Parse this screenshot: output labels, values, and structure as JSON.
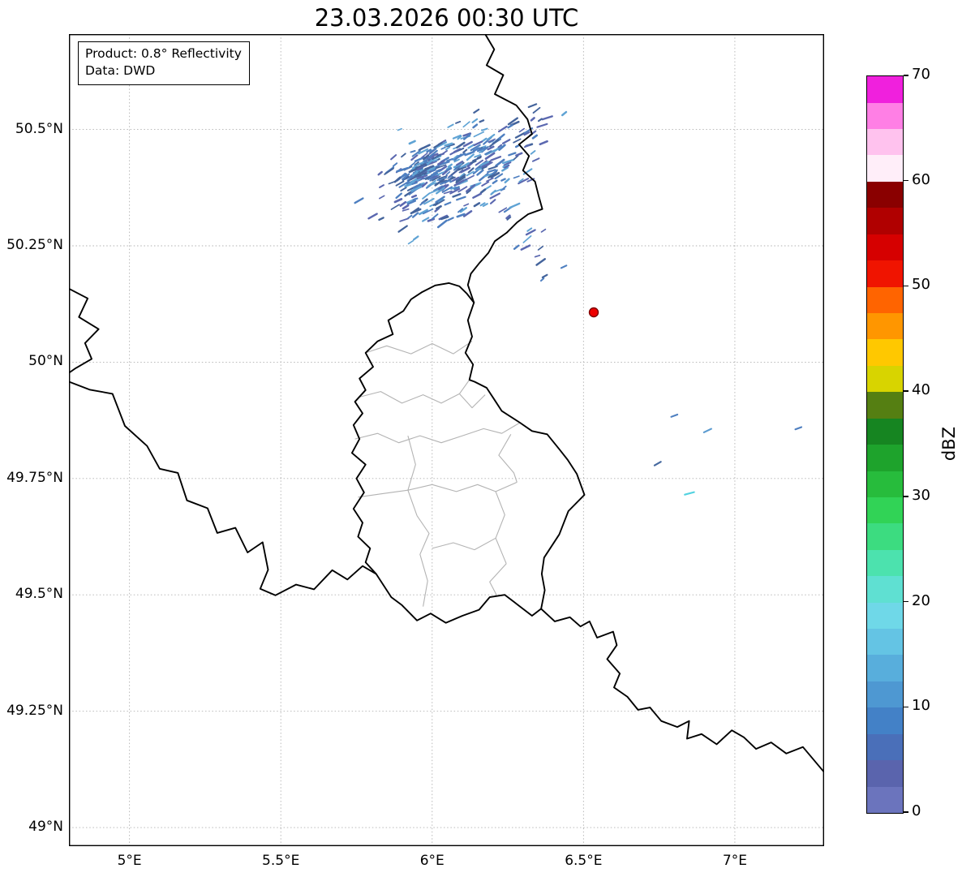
{
  "title": "23.03.2026 00:30 UTC",
  "info_box": {
    "line1": "Product: 0.8° Reflectivity",
    "line2": "Data: DWD"
  },
  "axes": {
    "x_tick_labels": [
      "5°E",
      "5.5°E",
      "6°E",
      "6.5°E",
      "7°E"
    ],
    "x_tick_values": [
      5,
      5.5,
      6,
      6.5,
      7
    ],
    "y_tick_labels": [
      "50.5°N",
      "50.25°N",
      "50°N",
      "49.75°N",
      "49.5°N",
      "49.25°N",
      "49°N"
    ],
    "y_tick_values": [
      50.5,
      50.25,
      50,
      49.75,
      49.5,
      49.25,
      49
    ],
    "extent": {
      "lon_min": 4.8,
      "lon_max": 7.295,
      "lat_min": 48.96,
      "lat_max": 50.705
    }
  },
  "colorbar": {
    "label": "dBZ",
    "tick_labels": [
      "0",
      "10",
      "20",
      "30",
      "40",
      "50",
      "60",
      "70"
    ],
    "tick_values": [
      0,
      10,
      20,
      30,
      40,
      50,
      60,
      70
    ],
    "vmin": 0,
    "vmax": 70,
    "segment_colors_bottom_to_top": [
      "#6b74bd",
      "#5a64ad",
      "#4a6fb9",
      "#4381c7",
      "#4e98d2",
      "#58aedc",
      "#64c4e4",
      "#6fd8e8",
      "#5fe0d2",
      "#4ce2ae",
      "#3cdc80",
      "#31d356",
      "#27bc3c",
      "#1ea32c",
      "#168521",
      "#557f12",
      "#d8d400",
      "#ffc800",
      "#ff9600",
      "#ff6400",
      "#f01400",
      "#d60000",
      "#b00000",
      "#8a0000",
      "#ffeef9",
      "#ffc2ee",
      "#ff7fe5",
      "#f020dd"
    ]
  },
  "radar": {
    "station_marker": {
      "lon": 6.534,
      "lat": 50.107,
      "fill": "#ee0000",
      "edge": "#7f0000"
    },
    "echo_palette": [
      "#4e7fc0",
      "#5b68b0",
      "#5fa3d4",
      "#44649c"
    ],
    "echo_clusters": [
      {
        "name": "main-shower-band",
        "center_lon": 6.08,
        "center_lat": 50.41,
        "sigma_major_deg": 0.145,
        "sigma_minor_deg": 0.042,
        "tilt_deg": -29,
        "count": 300,
        "seed": 42
      },
      {
        "name": "dense-core",
        "center_lon": 5.975,
        "center_lat": 50.415,
        "sigma_major_deg": 0.045,
        "sigma_minor_deg": 0.02,
        "tilt_deg": -29,
        "count": 90,
        "seed": 7
      },
      {
        "name": "south-trail",
        "center_lon": 6.3,
        "center_lat": 50.28,
        "sigma_major_deg": 0.03,
        "sigma_minor_deg": 0.05,
        "tilt_deg": -29,
        "count": 16,
        "seed": 13
      }
    ],
    "isolated_echoes": [
      {
        "lon": 6.435,
        "lat": 50.205,
        "color": "#4e7fc0",
        "len": 7,
        "angle": -25
      },
      {
        "lon": 6.8,
        "lat": 49.885,
        "color": "#4e7fc0",
        "len": 8,
        "angle": -20
      },
      {
        "lon": 6.91,
        "lat": 49.853,
        "color": "#5b9bd0",
        "len": 10,
        "angle": -25
      },
      {
        "lon": 7.21,
        "lat": 49.858,
        "color": "#4e7fc0",
        "len": 8,
        "angle": -20
      },
      {
        "lon": 6.745,
        "lat": 49.782,
        "color": "#46699f",
        "len": 9,
        "angle": -30
      },
      {
        "lon": 6.85,
        "lat": 49.718,
        "color": "#52d2e0",
        "len": 12,
        "angle": -15
      }
    ]
  }
}
